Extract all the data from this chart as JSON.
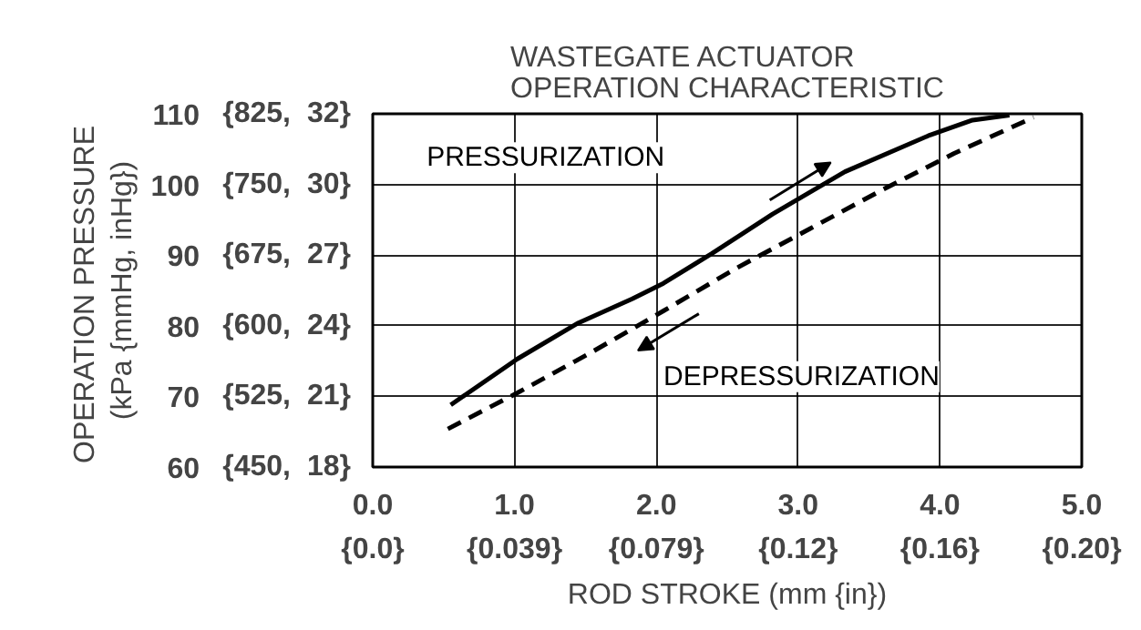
{
  "chart_data": {
    "type": "line",
    "title": "WASTEGATE ACTUATOR\nOPERATION CHARACTERISTIC",
    "xlabel": "ROD STROKE (mm {in})",
    "ylabel": "OPERATION  PRESSURE\n(kPa {mmHg, inHg})",
    "series": [
      {
        "color": "#000000",
        "line_style": "solid",
        "x": [
          0.55,
          1.02,
          1.45,
          1.83,
          2.05,
          2.39,
          2.82,
          3.33,
          3.93,
          4.23,
          4.49
        ],
        "values": [
          68.8,
          75.3,
          80.4,
          83.8,
          86.0,
          90.2,
          95.8,
          101.8,
          107.0,
          109.1,
          109.8
        ]
      },
      {
        "color": "#000000",
        "line_style": "dashed",
        "x": [
          0.53,
          1.02,
          1.53,
          2.05,
          2.56,
          3.08,
          3.59,
          4.1,
          4.66
        ],
        "values": [
          65.4,
          70.5,
          76.1,
          82.1,
          88.1,
          93.7,
          99.2,
          104.4,
          109.5
        ]
      }
    ],
    "xlim": [
      0,
      5
    ],
    "ylim": [
      60,
      110
    ],
    "xticks": [
      {
        "value": 0,
        "label": "0.0"
      },
      {
        "value": 1,
        "label": "1.0"
      },
      {
        "value": 2,
        "label": "2.0"
      },
      {
        "value": 3,
        "label": "3.0"
      },
      {
        "value": 4,
        "label": "4.0"
      },
      {
        "value": 5,
        "label": "5.0"
      }
    ],
    "x2lim": [
      0,
      0.19685
    ],
    "x2ticks": [
      {
        "value": 0,
        "label": "{0.0}"
      },
      {
        "value": 0.03937,
        "label": "{0.039}"
      },
      {
        "value": 0.07874,
        "label": "{0.079}"
      },
      {
        "value": 0.11811,
        "label": "{0.12}"
      },
      {
        "value": 0.15748,
        "label": "{0.16}"
      },
      {
        "value": 0.19685,
        "label": "{0.20}"
      }
    ],
    "yticks": [
      60,
      70,
      80,
      90,
      100,
      110
    ],
    "y2lim": [
      450,
      825
    ],
    "y2ticks": [
      {
        "value": 450,
        "label": "{450,"
      },
      {
        "value": 525,
        "label": "{525,"
      },
      {
        "value": 600,
        "label": "{600,"
      },
      {
        "value": 675,
        "label": "{675,"
      },
      {
        "value": 750,
        "label": "{750,"
      },
      {
        "value": 825,
        "label": "{825,"
      }
    ],
    "y3lim": [
      17.717,
      32.48
    ],
    "y3ticks": [
      {
        "value": 17.717,
        "label": "18}"
      },
      {
        "value": 20.669,
        "label": "21}"
      },
      {
        "value": 23.622,
        "label": "24}"
      },
      {
        "value": 26.575,
        "label": "27}"
      },
      {
        "value": 29.528,
        "label": "30}"
      },
      {
        "value": 32.48,
        "label": "32}"
      }
    ],
    "annotations": [
      "PRESSURIZATION",
      "DEPRESSURIZATION"
    ],
    "grid": true,
    "marker": "none"
  }
}
